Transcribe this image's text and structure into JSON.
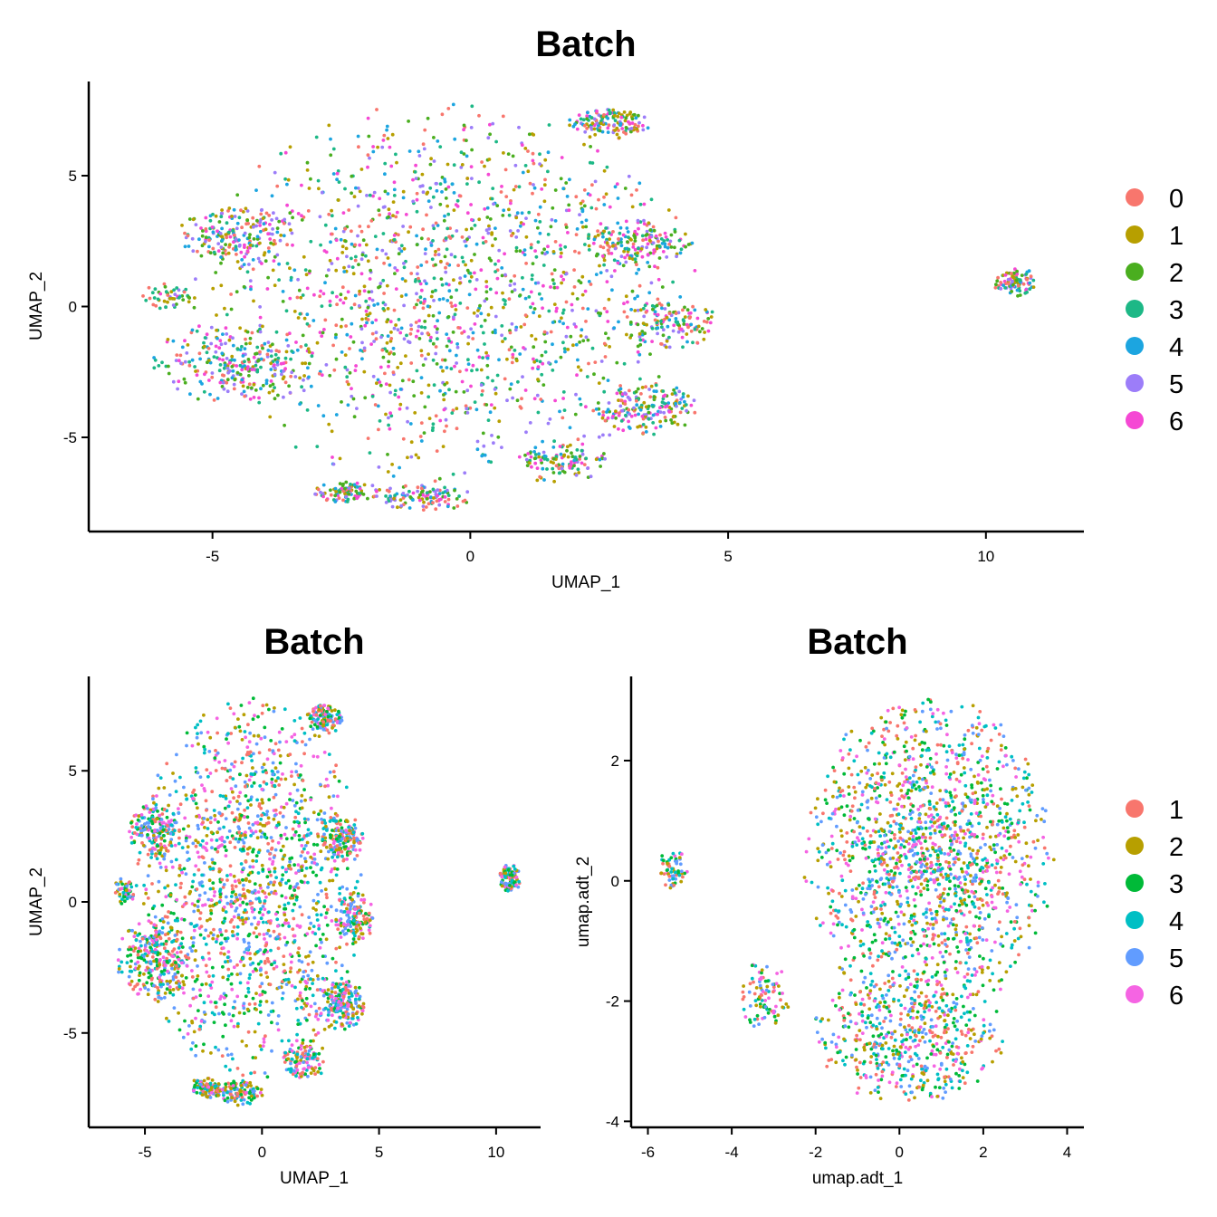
{
  "chart_data": [
    {
      "type": "scatter",
      "title": "Batch",
      "xlabel": "UMAP_1",
      "ylabel": "UMAP_2",
      "xlim": [
        -7.4,
        11.9
      ],
      "ylim": [
        -8.6,
        8.6
      ],
      "x_ticks": [
        -5,
        0,
        5,
        10
      ],
      "y_ticks": [
        -5,
        0,
        5
      ],
      "x_tick_labels": [
        "-5",
        "0",
        "5",
        "10"
      ],
      "y_tick_labels": [
        "-5",
        "0",
        "5"
      ],
      "legend_position": "right",
      "grid": false,
      "series": [
        {
          "name": "0",
          "color": "#F8766D"
        },
        {
          "name": "1",
          "color": "#B79F00"
        },
        {
          "name": "2",
          "color": "#4AAE1F"
        },
        {
          "name": "3",
          "color": "#1DB886"
        },
        {
          "name": "4",
          "color": "#1CA5E0"
        },
        {
          "name": "5",
          "color": "#9C7DF9"
        },
        {
          "name": "6",
          "color": "#F548D4"
        }
      ],
      "clusters": [
        {
          "cx": -0.5,
          "cy": 0.5,
          "rx": 4.9,
          "ry": 7.3,
          "n": 1500
        },
        {
          "cx": -4.6,
          "cy": -2.2,
          "rx": 1.6,
          "ry": 1.6,
          "n": 260
        },
        {
          "cx": -4.5,
          "cy": 2.7,
          "rx": 1.2,
          "ry": 1.1,
          "n": 180
        },
        {
          "cx": -5.9,
          "cy": 0.4,
          "rx": 0.5,
          "ry": 0.5,
          "n": 50
        },
        {
          "cx": 2.7,
          "cy": 7.0,
          "rx": 0.8,
          "ry": 0.6,
          "n": 140
        },
        {
          "cx": 3.4,
          "cy": -3.9,
          "rx": 1.0,
          "ry": 1.0,
          "n": 180
        },
        {
          "cx": 3.3,
          "cy": 2.4,
          "rx": 1.1,
          "ry": 1.0,
          "n": 160
        },
        {
          "cx": 3.9,
          "cy": -0.6,
          "rx": 0.9,
          "ry": 1.0,
          "n": 130
        },
        {
          "cx": -2.4,
          "cy": -7.1,
          "rx": 0.7,
          "ry": 0.4,
          "n": 90
        },
        {
          "cx": -0.9,
          "cy": -7.3,
          "rx": 1.0,
          "ry": 0.5,
          "n": 110
        },
        {
          "cx": 1.8,
          "cy": -6.0,
          "rx": 1.0,
          "ry": 0.8,
          "n": 110
        },
        {
          "cx": 10.6,
          "cy": 0.9,
          "rx": 0.45,
          "ry": 0.55,
          "n": 90
        }
      ]
    },
    {
      "type": "scatter",
      "title": "Batch",
      "xlabel": "UMAP_1",
      "ylabel": "UMAP_2",
      "xlim": [
        -7.4,
        11.9
      ],
      "ylim": [
        -8.6,
        8.6
      ],
      "x_ticks": [
        -5,
        0,
        5,
        10
      ],
      "y_ticks": [
        -5,
        0,
        5
      ],
      "x_tick_labels": [
        "-5",
        "0",
        "5",
        "10"
      ],
      "y_tick_labels": [
        "-5",
        "0",
        "5"
      ],
      "grid": false,
      "legend_position": "none",
      "series": [
        {
          "name": "1",
          "color": "#F8766D"
        },
        {
          "name": "2",
          "color": "#B79F00"
        },
        {
          "name": "3",
          "color": "#00BA38"
        },
        {
          "name": "4",
          "color": "#00BFC4"
        },
        {
          "name": "5",
          "color": "#619CFF"
        },
        {
          "name": "6",
          "color": "#F564E3"
        }
      ],
      "clusters": [
        {
          "cx": -0.5,
          "cy": 0.5,
          "rx": 4.9,
          "ry": 7.3,
          "n": 1500
        },
        {
          "cx": -4.6,
          "cy": -2.2,
          "rx": 1.6,
          "ry": 1.6,
          "n": 260
        },
        {
          "cx": -4.5,
          "cy": 2.7,
          "rx": 1.2,
          "ry": 1.1,
          "n": 180
        },
        {
          "cx": -5.9,
          "cy": 0.4,
          "rx": 0.5,
          "ry": 0.5,
          "n": 50
        },
        {
          "cx": 2.7,
          "cy": 7.0,
          "rx": 0.8,
          "ry": 0.6,
          "n": 140
        },
        {
          "cx": 3.4,
          "cy": -3.9,
          "rx": 1.0,
          "ry": 1.0,
          "n": 180
        },
        {
          "cx": 3.3,
          "cy": 2.4,
          "rx": 1.1,
          "ry": 1.0,
          "n": 160
        },
        {
          "cx": 3.9,
          "cy": -0.6,
          "rx": 0.9,
          "ry": 1.0,
          "n": 130
        },
        {
          "cx": -2.4,
          "cy": -7.1,
          "rx": 0.7,
          "ry": 0.4,
          "n": 90
        },
        {
          "cx": -0.9,
          "cy": -7.3,
          "rx": 1.0,
          "ry": 0.5,
          "n": 110
        },
        {
          "cx": 1.8,
          "cy": -6.0,
          "rx": 1.0,
          "ry": 0.8,
          "n": 110
        },
        {
          "cx": 10.6,
          "cy": 0.9,
          "rx": 0.45,
          "ry": 0.55,
          "n": 90
        }
      ]
    },
    {
      "type": "scatter",
      "title": "Batch",
      "xlabel": "umap.adt_1",
      "ylabel": "umap.adt_2",
      "xlim": [
        -6.4,
        4.4
      ],
      "ylim": [
        -4.1,
        3.4
      ],
      "x_ticks": [
        -6,
        -4,
        -2,
        0,
        2,
        4
      ],
      "y_ticks": [
        -4,
        -2,
        0,
        2
      ],
      "x_tick_labels": [
        "-6",
        "-4",
        "-2",
        "0",
        "2",
        "4"
      ],
      "y_tick_labels": [
        "-4",
        "-2",
        "0",
        "2"
      ],
      "legend_position": "right",
      "grid": false,
      "series": [
        {
          "name": "1",
          "color": "#F8766D"
        },
        {
          "name": "2",
          "color": "#B79F00"
        },
        {
          "name": "3",
          "color": "#00BA38"
        },
        {
          "name": "4",
          "color": "#00BFC4"
        },
        {
          "name": "5",
          "color": "#619CFF"
        },
        {
          "name": "6",
          "color": "#F564E3"
        }
      ],
      "clusters": [
        {
          "cx": 0.7,
          "cy": 0.4,
          "rx": 3.0,
          "ry": 2.7,
          "n": 1600
        },
        {
          "cx": 0.2,
          "cy": -2.6,
          "rx": 2.3,
          "ry": 1.1,
          "n": 520
        },
        {
          "cx": -3.2,
          "cy": -1.9,
          "rx": 0.6,
          "ry": 0.6,
          "n": 90
        },
        {
          "cx": -5.4,
          "cy": 0.2,
          "rx": 0.35,
          "ry": 0.35,
          "n": 60
        }
      ]
    }
  ]
}
